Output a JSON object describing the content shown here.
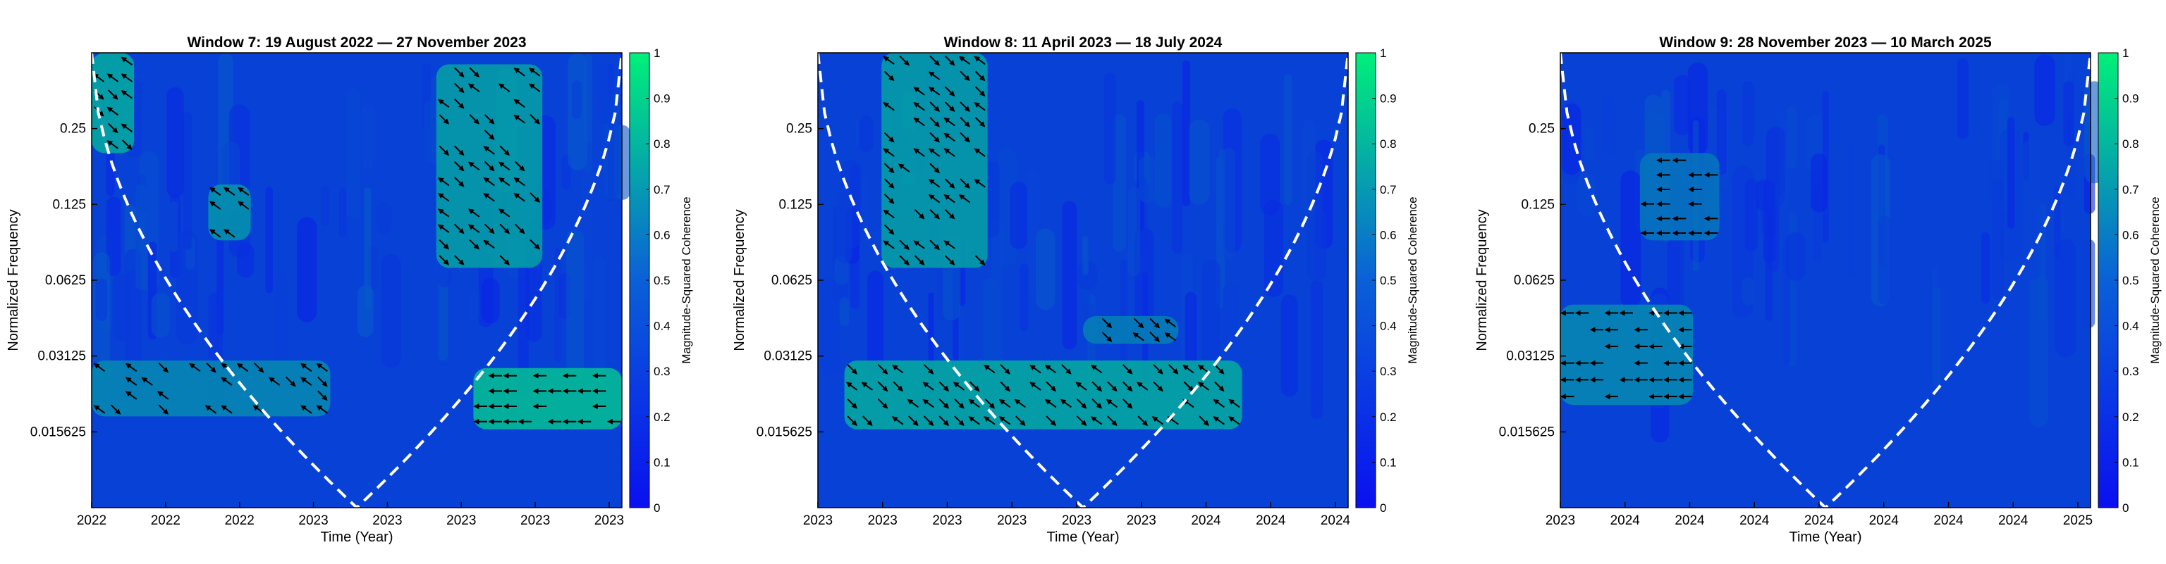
{
  "chart_data": [
    {
      "type": "heatmap",
      "title": "Window 7: 19 August 2022 — 27 November 2023",
      "xlabel": "Time (Year)",
      "ylabel": "Normalized Frequency",
      "x_tick_labels": [
        "2022",
        "2022",
        "2022",
        "2023",
        "2023",
        "2023",
        "2023",
        "2023"
      ],
      "y_tick_labels": [
        "0.25",
        "0.125",
        "0.0625",
        "0.03125",
        "0.015625"
      ],
      "y_ticks": [
        0.25,
        0.125,
        0.0625,
        0.03125,
        0.015625
      ],
      "y_scale": "log2",
      "colorbar": {
        "label": "Magnitude-Squared Coherence",
        "range": [
          0,
          1
        ],
        "tick_labels": [
          "0",
          "0.1",
          "0.2",
          "0.3",
          "0.4",
          "0.5",
          "0.6",
          "0.7",
          "0.8",
          "0.9",
          "1"
        ],
        "colormap_low": "#0a10f0",
        "colormap_high": "#00f07a"
      },
      "cone_of_influence": "white dashed",
      "coherence_regions": [
        {
          "t": [
            0.0,
            0.08
          ],
          "f": [
            0.2,
            0.5
          ],
          "value": 0.7
        },
        {
          "t": [
            0.22,
            0.3
          ],
          "f": [
            0.09,
            0.15
          ],
          "value": 0.6
        },
        {
          "t": [
            0.0,
            0.45
          ],
          "f": [
            0.018,
            0.03
          ],
          "value": 0.55
        },
        {
          "t": [
            0.65,
            0.85
          ],
          "f": [
            0.07,
            0.45
          ],
          "value": 0.65
        },
        {
          "t": [
            0.72,
            1.0
          ],
          "f": [
            0.016,
            0.028
          ],
          "value": 0.8
        }
      ]
    },
    {
      "type": "heatmap",
      "title": "Window 8: 11 April 2023 — 18 July 2024",
      "xlabel": "Time (Year)",
      "ylabel": "Normalized Frequency",
      "x_tick_labels": [
        "2023",
        "2023",
        "2023",
        "2023",
        "2023",
        "2023",
        "2024",
        "2024",
        "2024"
      ],
      "y_tick_labels": [
        "0.25",
        "0.125",
        "0.0625",
        "0.03125",
        "0.015625"
      ],
      "y_ticks": [
        0.25,
        0.125,
        0.0625,
        0.03125,
        0.015625
      ],
      "y_scale": "log2",
      "colorbar": {
        "label": "Magnitude-Squared Coherence",
        "range": [
          0,
          1
        ],
        "tick_labels": [
          "0",
          "0.1",
          "0.2",
          "0.3",
          "0.4",
          "0.5",
          "0.6",
          "0.7",
          "0.8",
          "0.9",
          "1"
        ],
        "colormap_low": "#0a10f0",
        "colormap_high": "#00f07a"
      },
      "cone_of_influence": "white dashed",
      "coherence_regions": [
        {
          "t": [
            0.12,
            0.32
          ],
          "f": [
            0.07,
            0.5
          ],
          "value": 0.65
        },
        {
          "t": [
            0.05,
            0.8
          ],
          "f": [
            0.016,
            0.03
          ],
          "value": 0.7
        },
        {
          "t": [
            0.5,
            0.68
          ],
          "f": [
            0.035,
            0.045
          ],
          "value": 0.5
        }
      ]
    },
    {
      "type": "heatmap",
      "title": "Window 9: 28 November 2023 — 10 March 2025",
      "xlabel": "Time (Year)",
      "ylabel": "Normalized Frequency",
      "x_tick_labels": [
        "2023",
        "2024",
        "2024",
        "2024",
        "2024",
        "2024",
        "2024",
        "2024",
        "2025"
      ],
      "y_tick_labels": [
        "0.25",
        "0.125",
        "0.0625",
        "0.03125",
        "0.015625"
      ],
      "y_ticks": [
        0.25,
        0.125,
        0.0625,
        0.03125,
        0.015625
      ],
      "y_scale": "log2",
      "colorbar": {
        "label": "Magnitude-Squared Coherence",
        "range": [
          0,
          1
        ],
        "tick_labels": [
          "0",
          "0.1",
          "0.2",
          "0.3",
          "0.4",
          "0.5",
          "0.6",
          "0.7",
          "0.8",
          "0.9",
          "1"
        ],
        "colormap_low": "#0a10f0",
        "colormap_high": "#00f07a"
      },
      "cone_of_influence": "white dashed",
      "coherence_regions": [
        {
          "t": [
            0.0,
            0.25
          ],
          "f": [
            0.02,
            0.05
          ],
          "value": 0.55
        },
        {
          "t": [
            0.15,
            0.3
          ],
          "f": [
            0.09,
            0.2
          ],
          "value": 0.45
        }
      ]
    }
  ]
}
